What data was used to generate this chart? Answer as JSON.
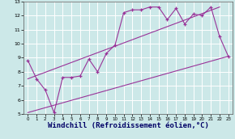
{
  "background_color": "#cce8e8",
  "grid_color": "#ffffff",
  "line_color": "#993399",
  "xlim": [
    -0.5,
    23.5
  ],
  "ylim": [
    5,
    13
  ],
  "xticks": [
    0,
    1,
    2,
    3,
    4,
    5,
    6,
    7,
    8,
    9,
    10,
    11,
    12,
    13,
    14,
    15,
    16,
    17,
    18,
    19,
    20,
    21,
    22,
    23
  ],
  "yticks": [
    5,
    6,
    7,
    8,
    9,
    10,
    11,
    12,
    13
  ],
  "xlabel": "Windchill (Refroidissement éolien,°C)",
  "line1_x": [
    0,
    1,
    2,
    3,
    4,
    5,
    6,
    7,
    8,
    9,
    10,
    11,
    12,
    13,
    14,
    15,
    16,
    17,
    18,
    19,
    20,
    21,
    22,
    23
  ],
  "line1_y": [
    8.8,
    7.5,
    6.7,
    5.1,
    7.6,
    7.6,
    7.7,
    8.9,
    8.0,
    9.3,
    9.9,
    12.2,
    12.4,
    12.4,
    12.6,
    12.6,
    11.7,
    12.5,
    11.4,
    12.1,
    12.0,
    12.6,
    10.5,
    9.1
  ],
  "line2_x": [
    0,
    22
  ],
  "line2_y": [
    7.5,
    12.6
  ],
  "line3_x": [
    0,
    23
  ],
  "line3_y": [
    5.1,
    9.1
  ]
}
